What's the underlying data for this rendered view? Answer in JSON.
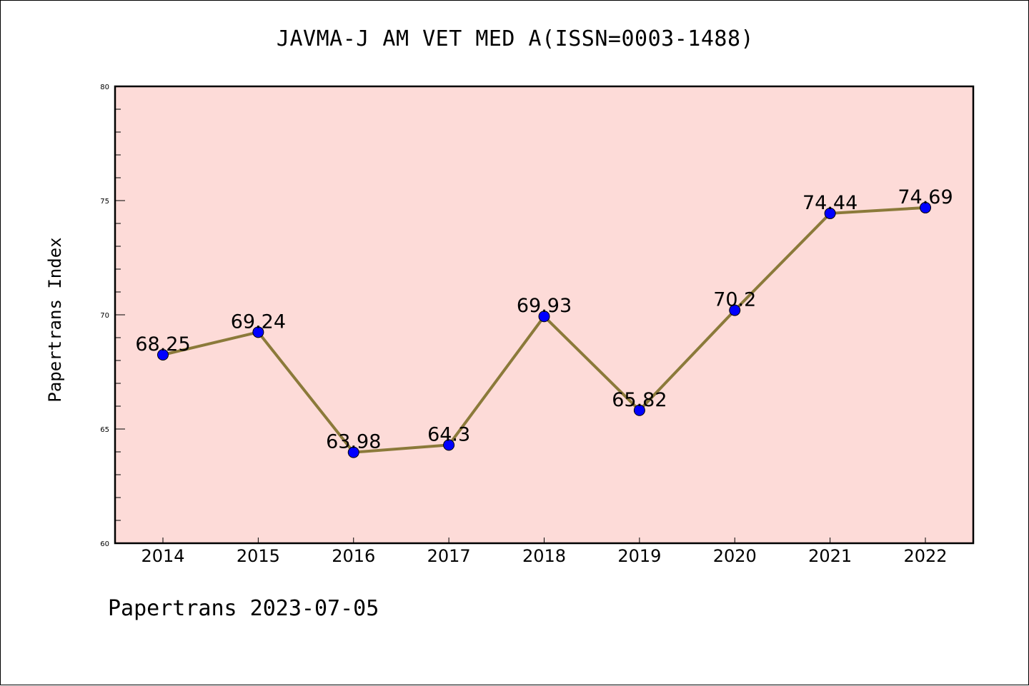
{
  "title": "JAVMA-J AM VET MED A(ISSN=0003-1488)",
  "footer": "Papertrans 2023-07-05",
  "colors": {
    "plot_background": "#fddbd8",
    "line": "#8b7a3a",
    "marker": "#0000ff"
  },
  "chart_data": {
    "type": "line",
    "title": "JAVMA-J AM VET MED A(ISSN=0003-1488)",
    "xlabel": "",
    "ylabel": "Papertrans Index",
    "categories": [
      "2014",
      "2015",
      "2016",
      "2017",
      "2018",
      "2019",
      "2020",
      "2021",
      "2022"
    ],
    "series": [
      {
        "values": [
          68.25,
          69.24,
          63.98,
          64.3,
          69.93,
          65.82,
          70.2,
          74.44,
          74.69
        ],
        "labels": [
          "68.25",
          "69.24",
          "63.98",
          "64.3",
          "69.93",
          "65.82",
          "70.2",
          "74.44",
          "74.69"
        ]
      }
    ],
    "ylim": [
      60,
      80
    ],
    "yticks": [
      "60",
      "65",
      "70",
      "75",
      "80"
    ],
    "grid": false,
    "legend": "none"
  }
}
